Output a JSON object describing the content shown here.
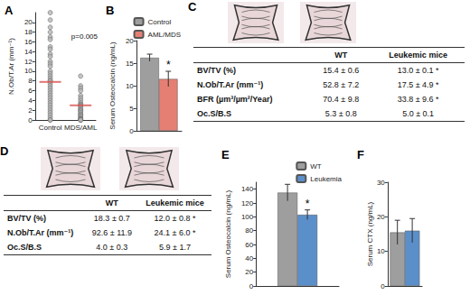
{
  "chart_data": [
    {
      "title": "A",
      "type": "scatter",
      "categories": [
        "Control",
        "MDS/AML"
      ],
      "values": [
        [
          22,
          20.5,
          19,
          18,
          17,
          16.5,
          15,
          14.5,
          13.5,
          13,
          12,
          11.5,
          11,
          10,
          9.5,
          9,
          8.5,
          8,
          8,
          7.5,
          7,
          6.5,
          6,
          5.5,
          5,
          4.5,
          4,
          3.5,
          3,
          2.5,
          2,
          1.5,
          1,
          0.5,
          0,
          0
        ],
        [
          9,
          7,
          6.5,
          6,
          5,
          4.5,
          4,
          3.5,
          3.2,
          3,
          2.8,
          2.5,
          2.2,
          2,
          1.8,
          1.5,
          1.2,
          1,
          0.8,
          0.5,
          0.3,
          0.2,
          0,
          0,
          0
        ]
      ],
      "medians": [
        7.8,
        3.0
      ],
      "color": "#b5b5b5",
      "median_color": "#d9534f",
      "marker": "circle",
      "y_label": "N.Ob/T.Ar (mm⁻¹)",
      "ylim": [
        0,
        22
      ],
      "yticks": [
        0,
        2,
        4,
        6,
        8,
        10,
        12,
        14,
        16,
        18,
        20
      ],
      "annotations": [
        {
          "text": "p=0.005"
        }
      ],
      "grid": false
    },
    {
      "title": "B",
      "type": "bar",
      "categories": [
        null
      ],
      "series": [
        {
          "name": "Control",
          "color": "#9e9e9e",
          "values": [
            16.2
          ],
          "errors": [
            0.8
          ]
        },
        {
          "name": "AML/MDS",
          "color": "#e57f74",
          "values": [
            11.5
          ],
          "errors": [
            1.7
          ]
        }
      ],
      "y_label": "Serum Osteocalcin (ng/mL)",
      "ylim": [
        0,
        20
      ],
      "yticks": [
        0,
        5,
        10,
        15,
        20
      ],
      "legend": "top-right",
      "annotations": [
        {
          "text": "*",
          "series": "AML/MDS"
        }
      ],
      "tick_labels": "y",
      "grid": false
    },
    {
      "title": "E",
      "type": "bar",
      "categories": [
        null
      ],
      "series": [
        {
          "name": "WT",
          "color": "#9e9e9e",
          "values": [
            135
          ],
          "errors": [
            12
          ]
        },
        {
          "name": "Leukemia",
          "color": "#5b8fc9",
          "values": [
            103
          ],
          "errors": [
            7
          ]
        }
      ],
      "y_label": "Serum Osteocalcin (ng/mL)",
      "ylim": [
        0,
        150
      ],
      "yticks": [
        0,
        20,
        40,
        60,
        80,
        100,
        120,
        140
      ],
      "legend": "top-right",
      "annotations": [
        {
          "text": "*",
          "series": "Leukemia"
        }
      ],
      "tick_labels": "y",
      "grid": false
    },
    {
      "title": "F",
      "type": "bar",
      "categories": [
        null
      ],
      "series": [
        {
          "name": "WT",
          "color": "#9e9e9e",
          "values": [
            15.5
          ],
          "errors": [
            3.5
          ]
        },
        {
          "name": "Leukemia",
          "color": "#5b8fc9",
          "values": [
            16
          ],
          "errors": [
            3.5
          ]
        }
      ],
      "y_label": "Serum CTX (ng/mL)",
      "ylim": [
        0,
        30
      ],
      "yticks": [
        0,
        10,
        20,
        30
      ],
      "tick_labels": "y",
      "grid": false
    }
  ],
  "tables": [
    {
      "title": "C",
      "header": [
        "WT",
        "Leukemic mice"
      ],
      "rows": [
        [
          "BV/TV (%)",
          "15.4 ± 0.6",
          "13.0 ± 0.1 *"
        ],
        [
          "N.Ob/T.Ar (mm⁻¹)",
          "52.8 ± 7.2",
          "17.5 ± 4.9 *"
        ],
        [
          "BFR (µm³/µm²/Year)",
          "70.4 ± 9.8",
          "33.8 ± 9.6 *"
        ],
        [
          "Oc.S/B.S",
          "5.3 ± 0.8",
          "5.0 ± 0.1"
        ]
      ]
    },
    {
      "title": "D",
      "header": [
        "WT",
        "Leukemic mice"
      ],
      "rows": [
        [
          "BV/TV (%)",
          "18.3 ± 0.7",
          "12.0 ± 0.8 *"
        ],
        [
          "N.Ob/T.Ar (mm⁻¹)",
          "92.6 ± 11.9",
          "24.1 ± 6.0 *"
        ],
        [
          "Oc.S/B.S",
          "4.0 ± 0.3",
          "5.9 ± 1.7"
        ]
      ]
    }
  ]
}
